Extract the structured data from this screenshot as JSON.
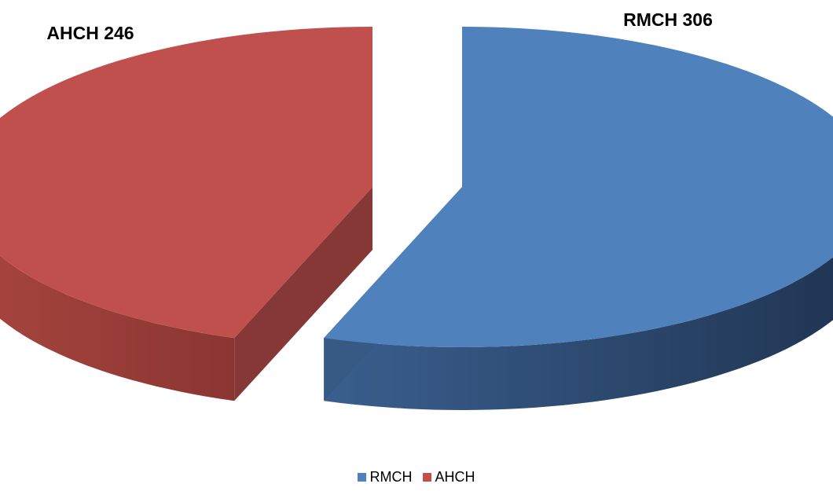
{
  "chart_data": {
    "type": "pie",
    "style": "3d-exploded",
    "labels": [
      "RMCH",
      "AHCH"
    ],
    "values": [
      306,
      246
    ],
    "colors": [
      "#4F81BD",
      "#C0504D"
    ],
    "data_labels": [
      "RMCH  306",
      "AHCH  246"
    ],
    "legend_position": "bottom",
    "title": ""
  }
}
